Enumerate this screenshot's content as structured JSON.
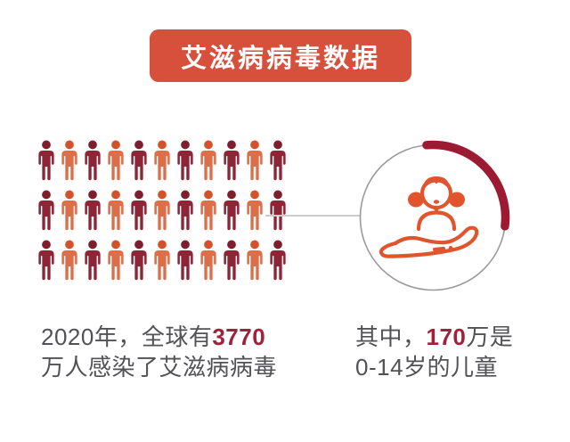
{
  "title": {
    "label": "艾滋病病毒数据"
  },
  "colors": {
    "background": "#ffffff",
    "banner": "#d7503b",
    "banner_text": "#ffffff",
    "connector": "#cccccc",
    "ring": "#9a9a9a",
    "arc": "#9c1b32",
    "icon_orange": "#e0552e",
    "text": "#525256",
    "number": "#a2203a",
    "person": {
      "dark": {
        "head": "#7d1e2e",
        "body": "#8e2537"
      },
      "orange": {
        "head": "#d2532b",
        "body": "#dc6f4a"
      }
    }
  },
  "chart_data": {
    "type": "pictograph",
    "title": "艾滋病病毒数据",
    "pictograph": {
      "rows": 3,
      "cols": 11,
      "total_icons": 33,
      "unit_icon": "person",
      "column_color_pattern": [
        "dark",
        "orange"
      ],
      "value": 3770,
      "unit": "万人",
      "label": "2020年，全球有3770万人感染了艾滋病病毒"
    },
    "donut": {
      "value": 170,
      "unit": "万",
      "of_total": 3770,
      "arc_start_degrees": 95,
      "arc_end_degrees": -7,
      "arc_direction": "clockwise",
      "center_icon": "child-on-hand",
      "label": "其中，170万是0-14岁的儿童"
    }
  },
  "captions": {
    "left": {
      "prefix": "2020年，全球有",
      "highlight": "3770",
      "line2": "万人感染了艾滋病病毒"
    },
    "right": {
      "prefix": "其中，",
      "highlight": "170",
      "suffix": "万是",
      "line2": "0-14岁的儿童"
    }
  }
}
